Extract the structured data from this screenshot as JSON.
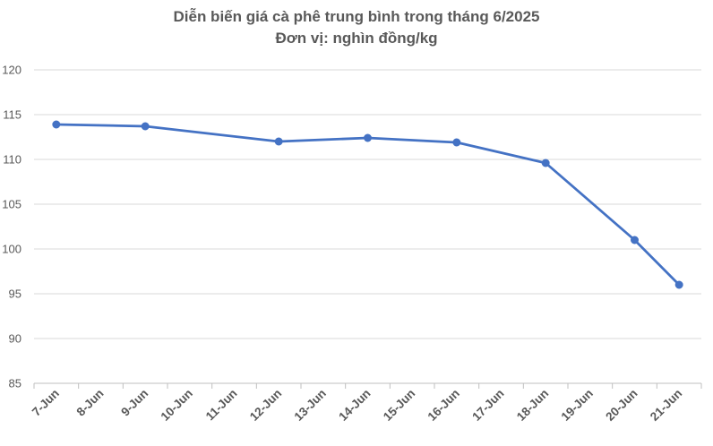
{
  "chart_data": {
    "type": "line",
    "title": "Diễn biến giá cà phê trung bình trong tháng 6/2025",
    "subtitle": "Đơn vị: nghìn đồng/kg",
    "xlabel": "",
    "ylabel": "",
    "categories": [
      "7-Jun",
      "8-Jun",
      "9-Jun",
      "10-Jun",
      "11-Jun",
      "12-Jun",
      "13-Jun",
      "14-Jun",
      "15-Jun",
      "16-Jun",
      "17-Jun",
      "18-Jun",
      "19-Jun",
      "20-Jun",
      "21-Jun"
    ],
    "series": [
      {
        "values": [
          {
            "x": "7-Jun",
            "y": 113.9
          },
          {
            "x": "9-Jun",
            "y": 113.7
          },
          {
            "x": "12-Jun",
            "y": 112.0
          },
          {
            "x": "14-Jun",
            "y": 112.4
          },
          {
            "x": "16-Jun",
            "y": 111.9
          },
          {
            "x": "18-Jun",
            "y": 109.6
          },
          {
            "x": "20-Jun",
            "y": 101.0
          },
          {
            "x": "21-Jun",
            "y": 96.0
          }
        ]
      }
    ],
    "ylim": [
      85,
      120
    ],
    "yticks": [
      85,
      90,
      95,
      100,
      105,
      110,
      115,
      120
    ],
    "grid": true,
    "legend": "none",
    "line_color": "#4472C4"
  }
}
